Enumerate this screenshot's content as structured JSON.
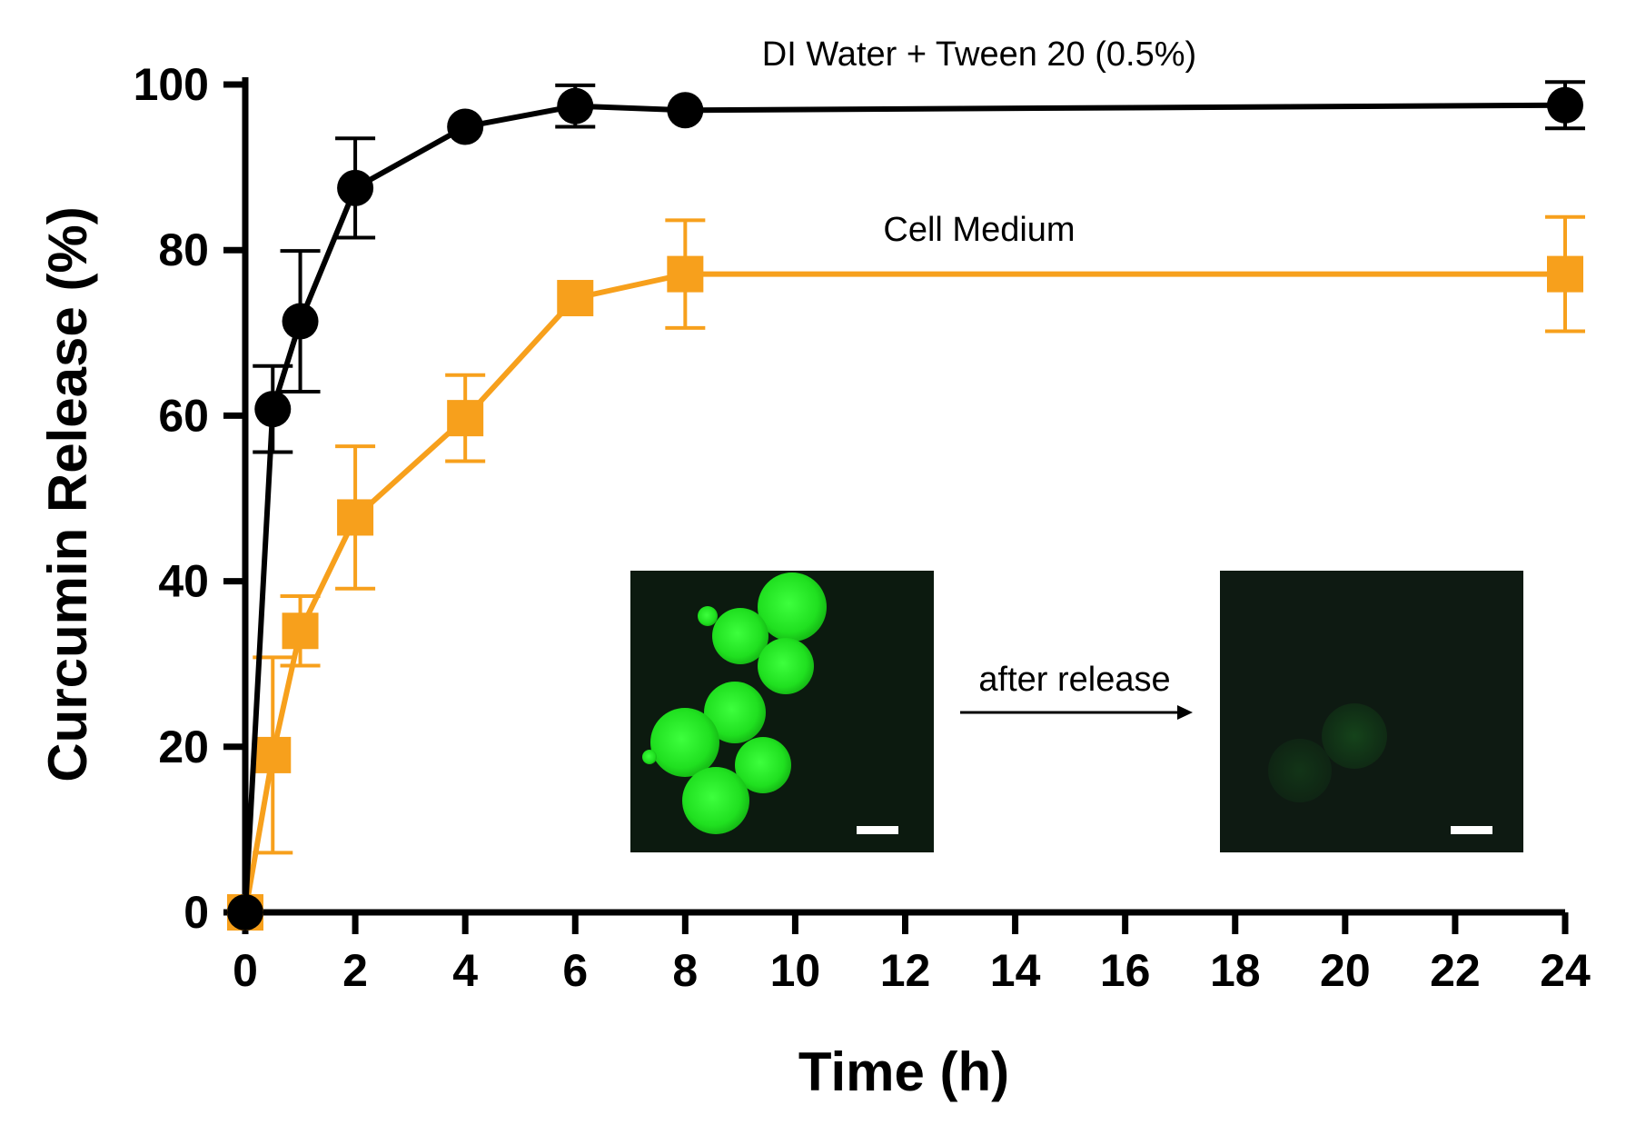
{
  "chart_data": {
    "type": "line",
    "title": "",
    "xlabel": "Time (h)",
    "ylabel": "Curcumin Release (%)",
    "xlim": [
      0,
      24
    ],
    "ylim": [
      0,
      100
    ],
    "xticks": [
      0,
      2,
      4,
      6,
      8,
      10,
      12,
      14,
      16,
      18,
      20,
      22,
      24
    ],
    "yticks": [
      0,
      20,
      40,
      60,
      80,
      100
    ],
    "grid": false,
    "series": [
      {
        "name": "DI Water + Tween 20 (0.5%)",
        "color": "#000000",
        "marker": "circle",
        "x": [
          0,
          0.5,
          1,
          2,
          4,
          6,
          8,
          24
        ],
        "y": [
          0,
          60.8,
          71.4,
          87.5,
          94.9,
          97.4,
          96.9,
          97.5
        ],
        "err": [
          0,
          5.2,
          8.5,
          6.0,
          0,
          2.5,
          0,
          2.8
        ]
      },
      {
        "name": "Cell Medium",
        "color": "#F7A01C",
        "marker": "square",
        "x": [
          0,
          0.5,
          1,
          2,
          4,
          6,
          8,
          24
        ],
        "y": [
          0,
          19.0,
          34.0,
          47.7,
          59.7,
          74.2,
          77.1,
          77.1
        ],
        "err": [
          0,
          11.8,
          4.2,
          8.6,
          5.2,
          0,
          6.5,
          6.9
        ]
      }
    ],
    "inset": {
      "arrow_label": "after release",
      "images": [
        "fluorescent-microspheres-before",
        "fluorescent-microspheres-after"
      ]
    }
  }
}
